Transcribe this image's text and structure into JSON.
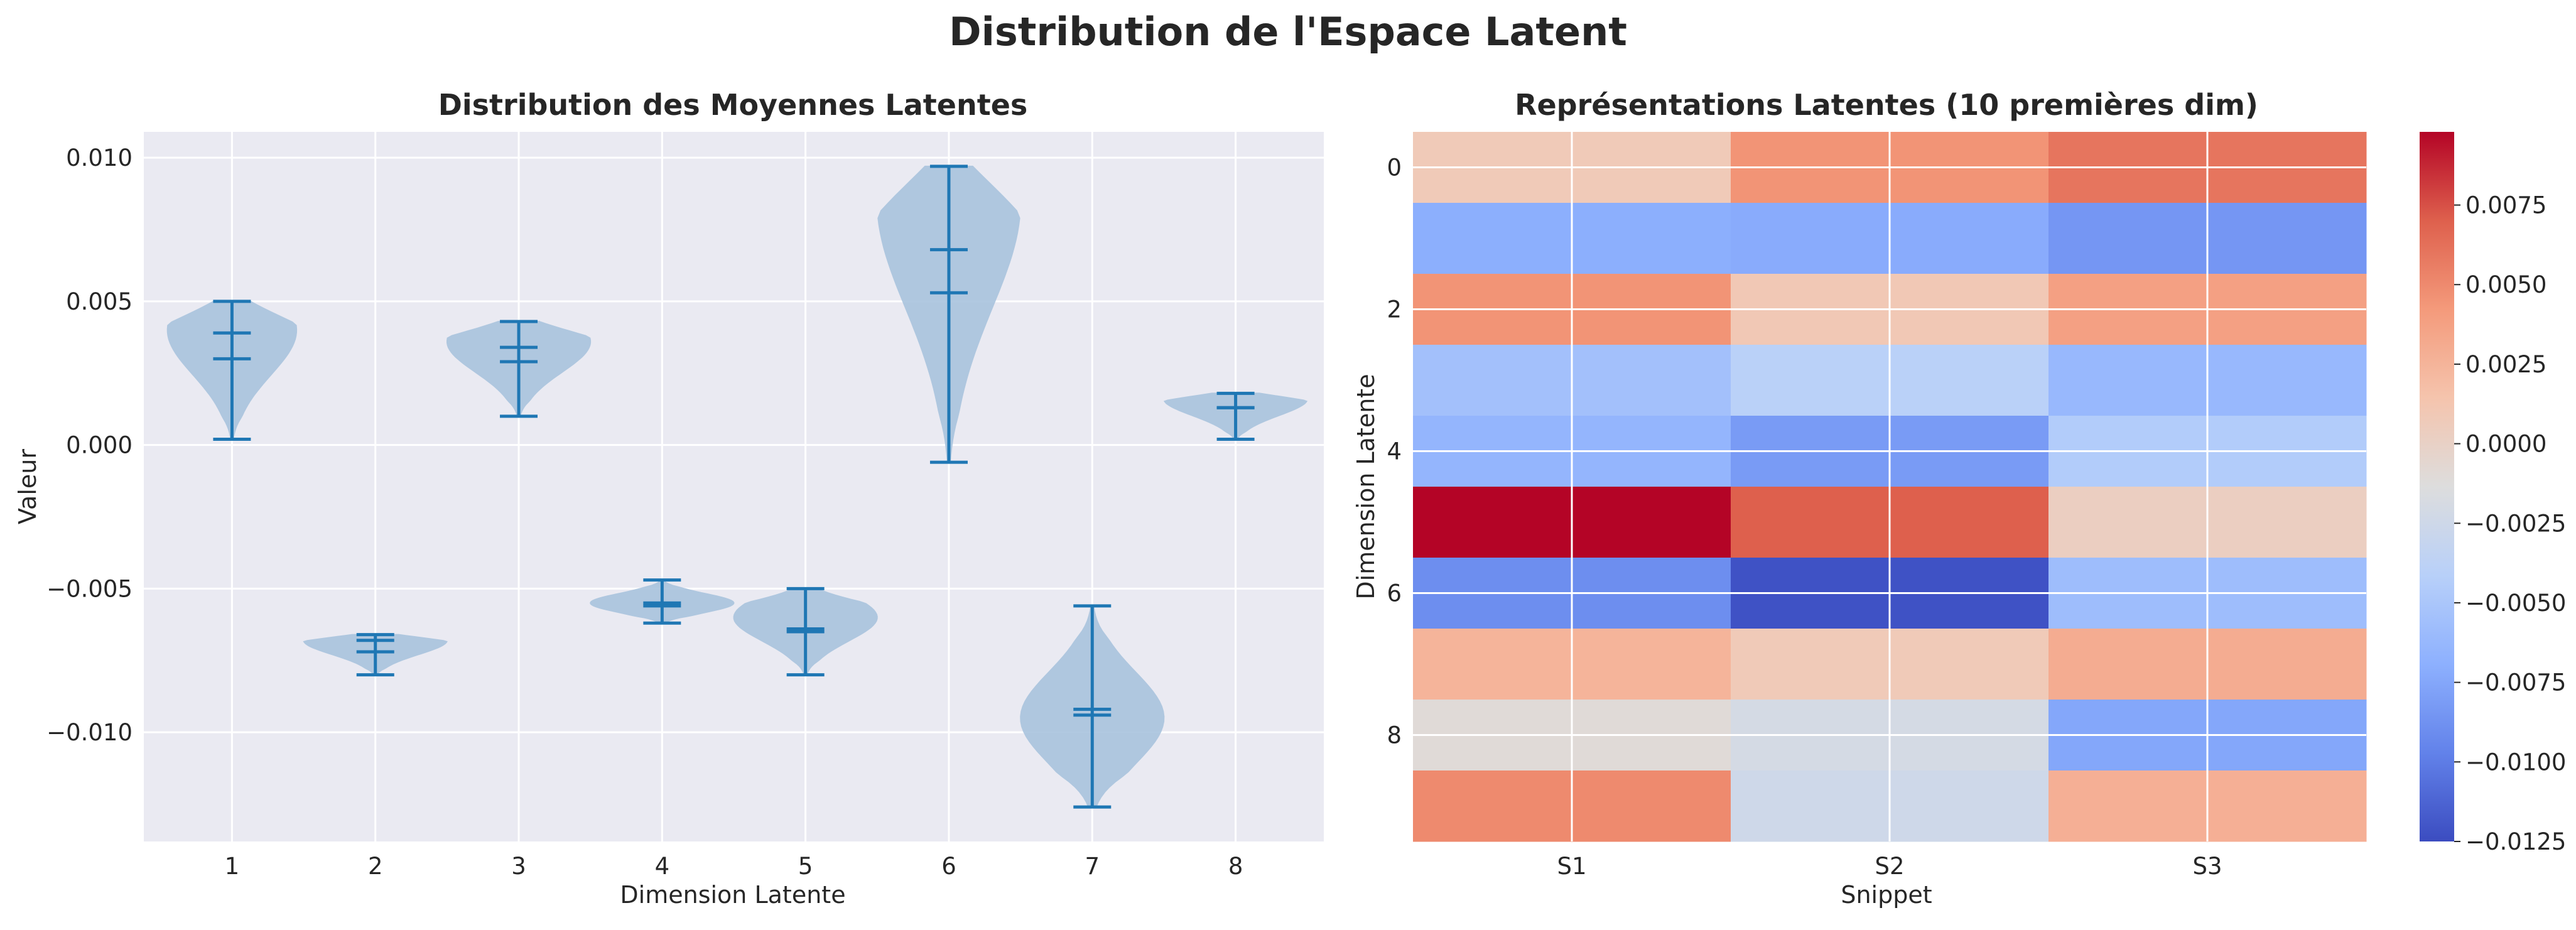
{
  "title": "Distribution de l'Espace Latent",
  "colors": {
    "panel_bg": "#eaeaf2",
    "grid": "#ffffff",
    "violin_fill": "#a9c4de",
    "violin_line": "#1f77b4",
    "text": "#262626"
  },
  "chart_data": [
    {
      "type": "violin",
      "title": "Distribution des Moyennes Latentes",
      "xlabel": "Dimension Latente",
      "ylabel": "Valeur",
      "categories": [
        "1",
        "2",
        "3",
        "4",
        "5",
        "6",
        "7",
        "8"
      ],
      "ylim": [
        -0.0138,
        0.0109
      ],
      "yticks": [
        -0.01,
        -0.005,
        0.0,
        0.005,
        0.01
      ],
      "ytick_labels": [
        "−0.010",
        "−0.005",
        "0.000",
        "0.005",
        "0.010"
      ],
      "grid": true,
      "violins": [
        {
          "min": 0.0002,
          "max": 0.005,
          "mean": 0.0039,
          "median": 0.003,
          "widest_at": 0.004,
          "max_half_width": 0.45
        },
        {
          "min": -0.008,
          "max": -0.0066,
          "mean": -0.0068,
          "median": -0.0072,
          "widest_at": -0.0068,
          "max_half_width": 0.5
        },
        {
          "min": 0.001,
          "max": 0.0043,
          "mean": 0.0034,
          "median": 0.0029,
          "widest_at": 0.0036,
          "max_half_width": 0.5
        },
        {
          "min": -0.0062,
          "max": -0.0047,
          "mean": -0.0055,
          "median": -0.0056,
          "widest_at": -0.0055,
          "max_half_width": 0.5
        },
        {
          "min": -0.008,
          "max": -0.005,
          "mean": -0.0064,
          "median": -0.0065,
          "widest_at": -0.006,
          "max_half_width": 0.5
        },
        {
          "min": -0.0006,
          "max": 0.0097,
          "mean": 0.0068,
          "median": 0.0053,
          "widest_at": 0.0085,
          "max_half_width": 0.5
        },
        {
          "min": -0.0126,
          "max": -0.0056,
          "mean": -0.0092,
          "median": -0.0094,
          "widest_at": -0.0095,
          "max_half_width": 0.5
        },
        {
          "min": 0.0002,
          "max": 0.0018,
          "mean": 0.0013,
          "median": 0.0013,
          "widest_at": 0.0016,
          "max_half_width": 0.5
        }
      ]
    },
    {
      "type": "heatmap",
      "title": "Représentations Latentes (10 premières dim)",
      "xlabel": "Snippet",
      "ylabel": "Dimension Latente",
      "x_categories": [
        "S1",
        "S2",
        "S3"
      ],
      "y_categories": [
        "0",
        "1",
        "2",
        "3",
        "4",
        "5",
        "6",
        "7",
        "8",
        "9"
      ],
      "ytick_labels": [
        "0",
        "",
        "2",
        "",
        "4",
        "",
        "6",
        "",
        "8",
        ""
      ],
      "values": [
        [
          0.0008,
          0.0045,
          0.006
        ],
        [
          -0.007,
          -0.0072,
          -0.0085
        ],
        [
          0.0045,
          0.001,
          0.0038
        ],
        [
          -0.0055,
          -0.004,
          -0.0062
        ],
        [
          -0.0065,
          -0.0082,
          -0.0045
        ],
        [
          0.0098,
          0.007,
          0.0003
        ],
        [
          -0.009,
          -0.0122,
          -0.0058
        ],
        [
          0.0025,
          0.0008,
          0.003
        ],
        [
          -0.001,
          -0.002,
          -0.0075
        ],
        [
          0.005,
          -0.0025,
          0.0028
        ]
      ],
      "colormap": "coolwarm",
      "vmin": -0.0125,
      "vmax": 0.0098,
      "colorbar_ticks": [
        0.0075,
        0.005,
        0.0025,
        0.0,
        -0.0025,
        -0.005,
        -0.0075,
        -0.01,
        -0.0125
      ],
      "colorbar_tick_labels": [
        "0.0075",
        "0.0050",
        "0.0025",
        "0.0000",
        "−0.0025",
        "−0.0050",
        "−0.0075",
        "−0.0100",
        "−0.0125"
      ]
    }
  ]
}
